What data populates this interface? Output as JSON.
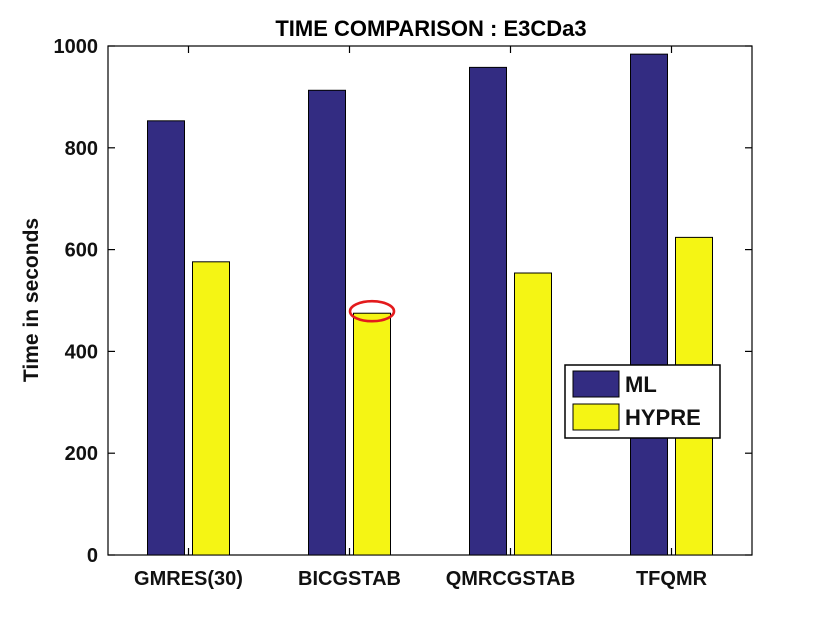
{
  "chart_data": {
    "type": "bar",
    "title": "TIME COMPARISON : E3CDa3",
    "xlabel": "",
    "ylabel": "Time in seconds",
    "categories": [
      "GMRES(30)",
      "BICGSTAB",
      "QMRCGSTAB",
      "TFQMR"
    ],
    "series": [
      {
        "name": "ML",
        "values": [
          853,
          913,
          958,
          984
        ],
        "color": "#332c82"
      },
      {
        "name": "HYPRE",
        "values": [
          576,
          475,
          554,
          624
        ],
        "color": "#f5f514"
      }
    ],
    "ylim": [
      0,
      1000
    ],
    "yticks": [
      "0",
      "200",
      "400",
      "600",
      "800",
      "1000"
    ],
    "grid": false,
    "legend_position": "right-middle",
    "annotation": {
      "type": "red-ellipse",
      "category": "BICGSTAB",
      "series": "HYPRE",
      "color": "#e31a1c"
    }
  }
}
